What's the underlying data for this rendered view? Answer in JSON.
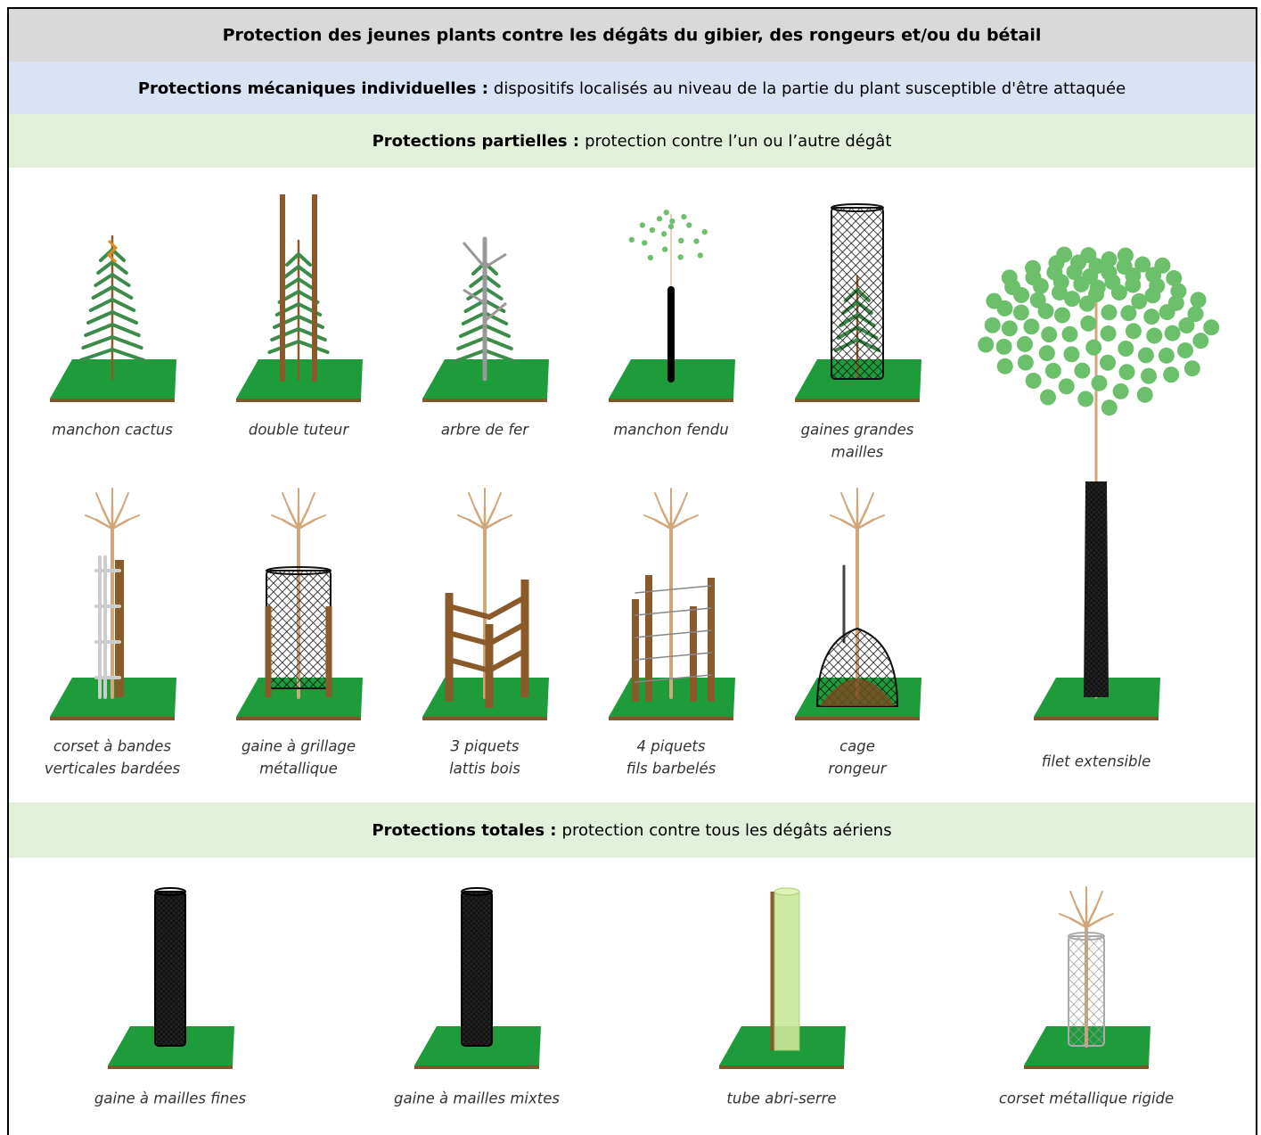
{
  "title": "Protection des jeunes plants contre les dégâts du gibier,  des rongeurs et/ou du bétail",
  "individual": {
    "label": "Protections mécaniques individuelles :",
    "text": "dispositifs localisés au niveau de la partie du plant susceptible d'être attaquée"
  },
  "partial": {
    "label": "Protections partielles :",
    "text": "protection contre l’un ou l’autre dégât",
    "items": [
      {
        "lines": [
          "manchon cactus"
        ]
      },
      {
        "lines": [
          "double tuteur"
        ]
      },
      {
        "lines": [
          "arbre de fer"
        ]
      },
      {
        "lines": [
          "manchon fendu"
        ]
      },
      {
        "lines": [
          "gaines grandes",
          "mailles"
        ]
      },
      {
        "lines": [
          "corset à bandes",
          "verticales bardées"
        ]
      },
      {
        "lines": [
          "gaine à grillage",
          "métallique"
        ]
      },
      {
        "lines": [
          "3 piquets",
          "lattis bois"
        ]
      },
      {
        "lines": [
          "4 piquets",
          "fils barbelés"
        ]
      },
      {
        "lines": [
          "cage",
          "rongeur"
        ]
      },
      {
        "lines": [
          "filet extensible"
        ]
      }
    ]
  },
  "total": {
    "label": "Protections totales :",
    "text": "protection contre tous les dégâts aériens",
    "items": [
      {
        "lines": [
          "gaine à mailles fines"
        ]
      },
      {
        "lines": [
          "gaine à mailles mixtes"
        ]
      },
      {
        "lines": [
          "tube abri-serre"
        ]
      },
      {
        "lines": [
          "corset métallique rigide"
        ]
      }
    ]
  }
}
